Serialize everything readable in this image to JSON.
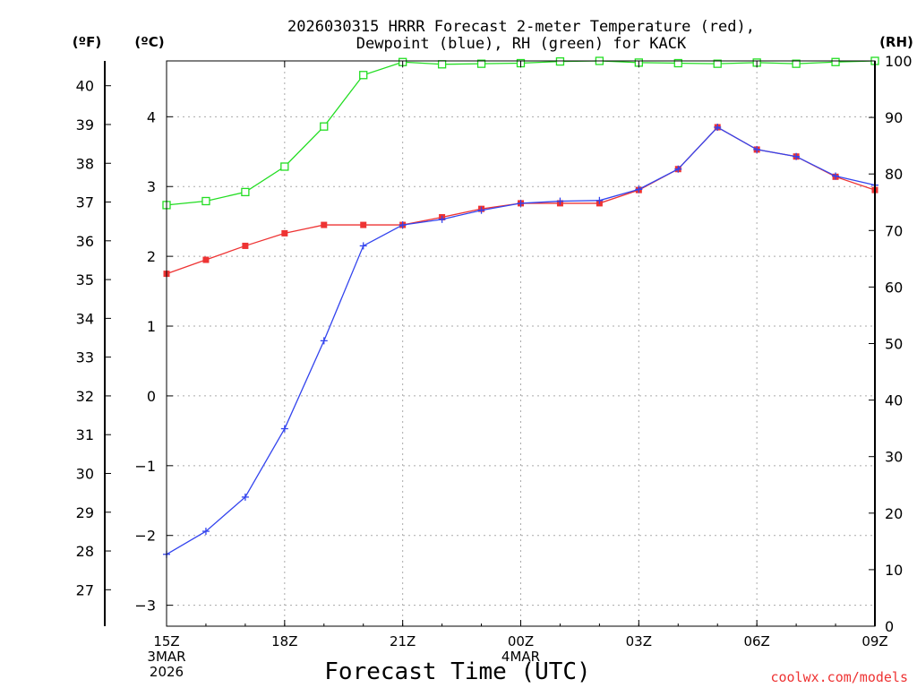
{
  "chart_data": {
    "type": "line",
    "title_line1": "2026030315 HRRR Forecast 2-meter Temperature (red),",
    "title_line2": "Dewpoint (blue), RH (green) for KACK",
    "xlabel": "Forecast Time (UTC)",
    "watermark": "coolwx.com/models",
    "unit_labels": {
      "fahrenheit": "(ºF)",
      "celsius": "(ºC)",
      "rh": "(RH)"
    },
    "x_hours": [
      0,
      1,
      2,
      3,
      4,
      5,
      6,
      7,
      8,
      9,
      10,
      11,
      12,
      13,
      14,
      15,
      16,
      17,
      18
    ],
    "xlim": [
      0,
      18
    ],
    "x_ticks": [
      {
        "hour": 0,
        "label": "15Z",
        "sub1": "3MAR",
        "sub2": "2026"
      },
      {
        "hour": 3,
        "label": "18Z",
        "sub1": "",
        "sub2": ""
      },
      {
        "hour": 6,
        "label": "21Z",
        "sub1": "",
        "sub2": ""
      },
      {
        "hour": 9,
        "label": "00Z",
        "sub1": "4MAR",
        "sub2": ""
      },
      {
        "hour": 12,
        "label": "03Z",
        "sub1": "",
        "sub2": ""
      },
      {
        "hour": 15,
        "label": "06Z",
        "sub1": "",
        "sub2": ""
      },
      {
        "hour": 18,
        "label": "09Z",
        "sub1": "",
        "sub2": ""
      }
    ],
    "celsius_axis": {
      "ylim": [
        -3.3,
        4.8
      ],
      "ticks": [
        -3,
        -2,
        -1,
        0,
        1,
        2,
        3,
        4
      ]
    },
    "fahrenheit_axis": {
      "ylim": [
        26.06,
        40.64
      ],
      "ticks": [
        27,
        28,
        29,
        30,
        31,
        32,
        33,
        34,
        35,
        36,
        37,
        38,
        39,
        40
      ]
    },
    "rh_axis": {
      "ylim": [
        0,
        100
      ],
      "ticks": [
        0,
        10,
        20,
        30,
        40,
        50,
        60,
        70,
        80,
        90,
        100
      ]
    },
    "grid": true,
    "series": [
      {
        "name": "Temperature",
        "axis": "celsius",
        "color": "#ee3333",
        "marker": "square-filled",
        "values": [
          1.75,
          1.95,
          2.15,
          2.33,
          2.45,
          2.45,
          2.45,
          2.56,
          2.68,
          2.76,
          2.76,
          2.76,
          2.95,
          3.25,
          3.85,
          3.53,
          3.43,
          3.14,
          2.95
        ]
      },
      {
        "name": "Dewpoint",
        "axis": "celsius",
        "color": "#3344ee",
        "marker": "plus",
        "values": [
          -2.27,
          -1.94,
          -1.45,
          -0.47,
          0.79,
          2.15,
          2.45,
          2.53,
          2.66,
          2.76,
          2.79,
          2.8,
          2.96,
          3.25,
          3.85,
          3.53,
          3.43,
          3.15,
          3.02
        ]
      },
      {
        "name": "RH",
        "axis": "rh",
        "color": "#22dd22",
        "marker": "square-open",
        "values": [
          74.5,
          75.2,
          76.8,
          81.3,
          88.4,
          97.5,
          99.8,
          99.4,
          99.5,
          99.6,
          99.9,
          100.0,
          99.7,
          99.6,
          99.5,
          99.7,
          99.5,
          99.8,
          100.0
        ]
      }
    ]
  }
}
